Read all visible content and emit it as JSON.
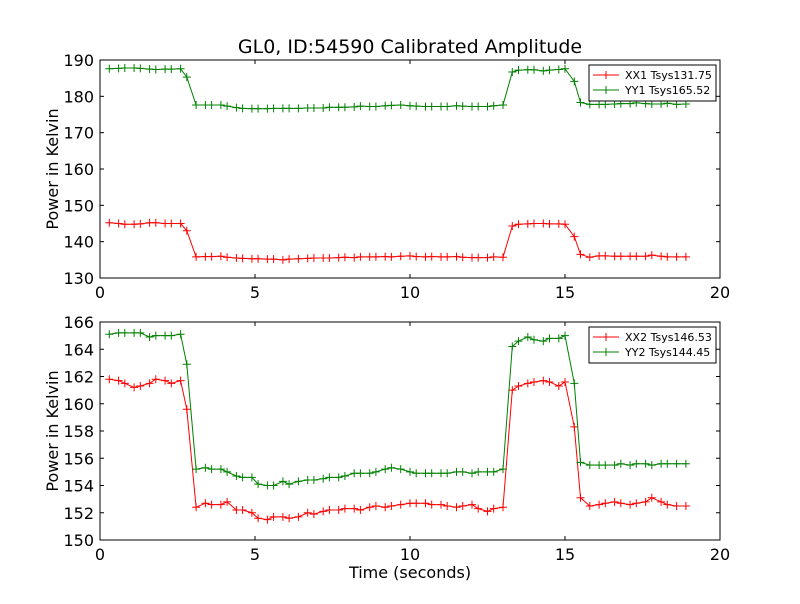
{
  "chart_data": [
    {
      "type": "line",
      "title": "GL0, ID:54590 Calibrated Amplitude",
      "xlabel": "",
      "ylabel": "Power in Kelvin",
      "xlim": [
        0,
        20
      ],
      "ylim": [
        130,
        190
      ],
      "xticks": [
        "0",
        "5",
        "10",
        "15",
        "20"
      ],
      "yticks": [
        "130",
        "140",
        "150",
        "160",
        "170",
        "180",
        "190"
      ],
      "grid": false,
      "legend": "top-right",
      "x": [
        0.3,
        0.6,
        0.8,
        1.1,
        1.3,
        1.6,
        1.8,
        2.1,
        2.3,
        2.6,
        2.8,
        3.1,
        3.4,
        3.6,
        3.9,
        4.1,
        4.4,
        4.6,
        4.9,
        5.1,
        5.4,
        5.6,
        5.9,
        6.1,
        6.4,
        6.7,
        6.9,
        7.2,
        7.4,
        7.7,
        7.9,
        8.2,
        8.4,
        8.7,
        8.9,
        9.2,
        9.4,
        9.7,
        10.0,
        10.2,
        10.5,
        10.7,
        11.0,
        11.2,
        11.5,
        11.7,
        12.0,
        12.2,
        12.5,
        12.7,
        13.0,
        13.3,
        13.5,
        13.8,
        14.0,
        14.3,
        14.5,
        14.8,
        15.0,
        15.3,
        15.5,
        15.8,
        16.1,
        16.3,
        16.6,
        16.8,
        17.1,
        17.3,
        17.6,
        17.8,
        18.1,
        18.3,
        18.6,
        18.9
      ],
      "series": [
        {
          "name": "XX1 Tsys131.75",
          "color": "#ff0000",
          "values": [
            145.2,
            145.0,
            144.8,
            144.8,
            144.9,
            145.2,
            145.2,
            145.0,
            145.0,
            145.0,
            143.0,
            135.8,
            135.9,
            135.9,
            136.0,
            135.7,
            135.5,
            135.4,
            135.3,
            135.3,
            135.2,
            135.2,
            135.0,
            135.2,
            135.3,
            135.4,
            135.5,
            135.5,
            135.5,
            135.6,
            135.7,
            135.6,
            135.8,
            135.8,
            135.8,
            135.9,
            135.8,
            136.0,
            136.1,
            135.9,
            135.8,
            135.9,
            135.8,
            135.8,
            135.9,
            135.7,
            135.6,
            135.6,
            135.6,
            135.8,
            135.7,
            144.3,
            144.8,
            144.9,
            145.0,
            145.0,
            144.9,
            144.9,
            144.8,
            141.4,
            136.5,
            135.7,
            136.1,
            136.1,
            136.0,
            136.0,
            136.0,
            136.0,
            136.0,
            136.3,
            136.0,
            135.8,
            135.8,
            135.8
          ]
        },
        {
          "name": "YY1 Tsys165.52",
          "color": "#008000",
          "values": [
            187.6,
            187.7,
            187.8,
            187.8,
            187.7,
            187.5,
            187.4,
            187.5,
            187.5,
            187.6,
            185.3,
            177.6,
            177.6,
            177.6,
            177.6,
            177.3,
            176.9,
            176.7,
            176.6,
            176.6,
            176.6,
            176.7,
            176.7,
            176.7,
            176.7,
            176.8,
            176.8,
            176.8,
            177.0,
            177.0,
            177.0,
            177.1,
            177.3,
            177.2,
            177.2,
            177.4,
            177.5,
            177.6,
            177.4,
            177.3,
            177.2,
            177.2,
            177.2,
            177.2,
            177.4,
            177.3,
            177.2,
            177.2,
            177.2,
            177.4,
            177.6,
            186.7,
            187.2,
            187.3,
            187.3,
            187.0,
            187.2,
            187.4,
            187.6,
            184.1,
            178.3,
            177.8,
            177.8,
            177.8,
            177.9,
            178.0,
            178.0,
            178.2,
            178.0,
            177.9,
            177.9,
            178.1,
            177.8,
            177.9
          ]
        }
      ]
    },
    {
      "type": "line",
      "title": "",
      "xlabel": "Time (seconds)",
      "ylabel": "Power in Kelvin",
      "xlim": [
        0,
        20
      ],
      "ylim": [
        150,
        166
      ],
      "xticks": [
        "0",
        "5",
        "10",
        "15",
        "20"
      ],
      "yticks": [
        "150",
        "152",
        "154",
        "156",
        "158",
        "160",
        "162",
        "164",
        "166"
      ],
      "grid": false,
      "legend": "top-right",
      "x": [
        0.3,
        0.6,
        0.8,
        1.1,
        1.3,
        1.6,
        1.8,
        2.1,
        2.3,
        2.6,
        2.8,
        3.1,
        3.4,
        3.6,
        3.9,
        4.1,
        4.4,
        4.6,
        4.9,
        5.1,
        5.4,
        5.6,
        5.9,
        6.1,
        6.4,
        6.7,
        6.9,
        7.2,
        7.4,
        7.7,
        7.9,
        8.2,
        8.4,
        8.7,
        8.9,
        9.2,
        9.4,
        9.7,
        10.0,
        10.2,
        10.5,
        10.7,
        11.0,
        11.2,
        11.5,
        11.7,
        12.0,
        12.2,
        12.5,
        12.7,
        13.0,
        13.3,
        13.5,
        13.8,
        14.0,
        14.3,
        14.5,
        14.8,
        15.0,
        15.3,
        15.5,
        15.8,
        16.1,
        16.3,
        16.6,
        16.8,
        17.1,
        17.3,
        17.6,
        17.8,
        18.1,
        18.3,
        18.6,
        18.9
      ],
      "series": [
        {
          "name": "XX2 Tsys146.53",
          "color": "#ff0000",
          "values": [
            161.8,
            161.7,
            161.5,
            161.2,
            161.3,
            161.5,
            161.8,
            161.7,
            161.5,
            161.7,
            159.6,
            152.4,
            152.7,
            152.6,
            152.6,
            152.8,
            152.2,
            152.2,
            152.0,
            151.6,
            151.5,
            151.7,
            151.7,
            151.6,
            151.7,
            152.0,
            151.9,
            152.1,
            152.2,
            152.2,
            152.3,
            152.3,
            152.2,
            152.4,
            152.5,
            152.4,
            152.5,
            152.6,
            152.7,
            152.7,
            152.7,
            152.6,
            152.6,
            152.5,
            152.4,
            152.5,
            152.6,
            152.3,
            152.1,
            152.3,
            152.4,
            161.0,
            161.3,
            161.5,
            161.6,
            161.7,
            161.6,
            161.3,
            161.6,
            158.3,
            153.1,
            152.5,
            152.6,
            152.7,
            152.8,
            152.7,
            152.6,
            152.7,
            152.8,
            153.1,
            152.8,
            152.6,
            152.5,
            152.5
          ]
        },
        {
          "name": "YY2 Tsys144.45",
          "color": "#008000",
          "values": [
            165.1,
            165.2,
            165.2,
            165.2,
            165.2,
            164.9,
            165.0,
            165.0,
            165.0,
            165.1,
            162.9,
            155.2,
            155.3,
            155.2,
            155.2,
            155.0,
            154.7,
            154.6,
            154.6,
            154.1,
            154.0,
            154.0,
            154.3,
            154.1,
            154.3,
            154.4,
            154.4,
            154.5,
            154.6,
            154.6,
            154.7,
            154.9,
            154.9,
            154.9,
            155.0,
            155.2,
            155.3,
            155.2,
            155.0,
            154.9,
            154.9,
            154.9,
            154.9,
            154.9,
            155.0,
            155.0,
            154.9,
            155.0,
            155.0,
            155.0,
            155.2,
            164.2,
            164.6,
            164.9,
            164.7,
            164.6,
            164.8,
            164.8,
            165.0,
            161.5,
            155.7,
            155.5,
            155.5,
            155.5,
            155.5,
            155.6,
            155.5,
            155.6,
            155.6,
            155.5,
            155.6,
            155.6,
            155.6,
            155.6
          ]
        }
      ]
    }
  ]
}
